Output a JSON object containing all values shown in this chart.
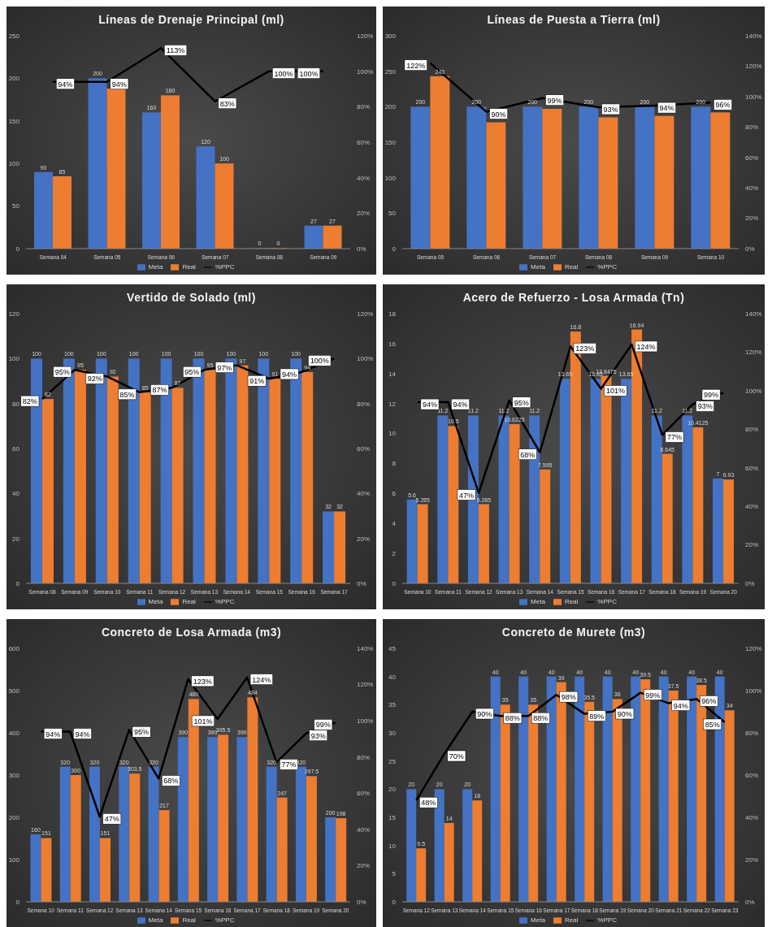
{
  "chart_data": [
    {
      "type": "bar",
      "title": "Líneas de Drenaje Principal (ml)",
      "categories": [
        "Semana 04",
        "Semana 05",
        "Semana 06",
        "Semana 07",
        "Semana 08",
        "Semana 09"
      ],
      "legend": "bottom",
      "grid": false,
      "ylim": [
        0,
        250
      ],
      "yticks": [
        0,
        50,
        100,
        150,
        200,
        250
      ],
      "y2lim": [
        0,
        120
      ],
      "y2ticks": [
        {
          "value": 0,
          "label": "0%"
        },
        {
          "value": 20,
          "label": "20%"
        },
        {
          "value": 40,
          "label": "40%"
        },
        {
          "value": 60,
          "label": "60%"
        },
        {
          "value": 80,
          "label": "80%"
        },
        {
          "value": 100,
          "label": "100%"
        },
        {
          "value": 120,
          "label": "120%"
        }
      ],
      "series": [
        {
          "name": "Meta",
          "color": "#4472c4",
          "values": [
            90,
            200,
            160,
            120,
            0,
            27
          ],
          "value_labels": [
            "90",
            "200",
            "160",
            "120",
            "0",
            "27"
          ]
        },
        {
          "name": "Real",
          "color": "#ed7d31",
          "values": [
            85,
            188,
            180,
            100,
            0,
            27
          ],
          "value_labels": [
            "85",
            null,
            "180",
            "100",
            "0",
            "27"
          ]
        },
        {
          "name": "%PPC",
          "type": "line",
          "axis": "y2",
          "color": "#000000",
          "values": [
            94,
            94,
            113,
            83,
            100,
            100
          ],
          "value_labels": [
            "94%",
            "94%",
            "113%",
            "83%",
            "100%",
            "100%"
          ]
        }
      ]
    },
    {
      "type": "bar",
      "title": "Líneas de Puesta a Tierra (ml)",
      "categories": [
        "Semana 05",
        "Semana 06",
        "Semana 07",
        "Semana 08",
        "Semana 09",
        "Semana 10"
      ],
      "legend": "bottom",
      "grid": false,
      "ylim": [
        0,
        300
      ],
      "yticks": [
        0,
        50,
        100,
        150,
        200,
        250,
        300
      ],
      "y2lim": [
        0,
        140
      ],
      "y2ticks": [
        {
          "value": 0,
          "label": "0%"
        },
        {
          "value": 20,
          "label": "20%"
        },
        {
          "value": 40,
          "label": "40%"
        },
        {
          "value": 60,
          "label": "60%"
        },
        {
          "value": 80,
          "label": "80%"
        },
        {
          "value": 100,
          "label": "100%"
        },
        {
          "value": 120,
          "label": "120%"
        },
        {
          "value": 140,
          "label": "140%"
        }
      ],
      "series": [
        {
          "name": "Meta",
          "color": "#4472c4",
          "values": [
            200,
            200,
            200,
            200,
            200,
            200
          ],
          "value_labels": [
            "200",
            "200",
            "200",
            "200",
            "200",
            "200"
          ]
        },
        {
          "name": "Real",
          "color": "#ed7d31",
          "values": [
            243,
            178,
            197,
            185,
            187,
            192
          ],
          "value_labels": [
            "243",
            null,
            null,
            null,
            null,
            null
          ]
        },
        {
          "name": "%PPC",
          "type": "line",
          "axis": "y2",
          "color": "#000000",
          "values": [
            122,
            90,
            99,
            93,
            94,
            96
          ],
          "value_labels": [
            "122%",
            "90%",
            "99%",
            "93%",
            "94%",
            "96%"
          ]
        }
      ]
    },
    {
      "type": "bar",
      "title": "Vertido de Solado (ml)",
      "categories": [
        "Semana 08",
        "Semana 09",
        "Semana 10",
        "Semana 11",
        "Semana 12",
        "Semana 13",
        "Semana 14",
        "Semana 15",
        "Semana 16",
        "Semana 17"
      ],
      "legend": "bottom",
      "grid": false,
      "ylim": [
        0,
        120
      ],
      "yticks": [
        0,
        20,
        40,
        60,
        80,
        100,
        120
      ],
      "y2lim": [
        0,
        120
      ],
      "y2ticks": [
        {
          "value": 0,
          "label": "0%"
        },
        {
          "value": 20,
          "label": "20%"
        },
        {
          "value": 40,
          "label": "40%"
        },
        {
          "value": 60,
          "label": "60%"
        },
        {
          "value": 80,
          "label": "80%"
        },
        {
          "value": 100,
          "label": "100%"
        },
        {
          "value": 120,
          "label": "120%"
        }
      ],
      "series": [
        {
          "name": "Meta",
          "color": "#4472c4",
          "values": [
            100,
            100,
            100,
            100,
            100,
            100,
            100,
            100,
            100,
            32
          ],
          "value_labels": [
            "100",
            "100",
            "100",
            "100",
            "100",
            "100",
            "100",
            "100",
            "100",
            "32"
          ]
        },
        {
          "name": "Real",
          "color": "#ed7d31",
          "values": [
            82,
            95,
            92,
            85,
            87,
            95,
            97,
            91,
            94,
            32
          ],
          "value_labels": [
            "82",
            "95",
            "92",
            "85",
            "87",
            "95",
            "97",
            "91",
            "94",
            "32"
          ]
        },
        {
          "name": "%PPC",
          "type": "line",
          "axis": "y2",
          "color": "#000000",
          "values": [
            82,
            95,
            92,
            85,
            87,
            95,
            97,
            91,
            94,
            100
          ],
          "value_labels": [
            "82%",
            "95%",
            "92%",
            "85%",
            "87%",
            "95%",
            "97%",
            "91%",
            "94%",
            "100%"
          ]
        }
      ]
    },
    {
      "type": "bar",
      "title": "Acero de Refuerzo - Losa Armada (Tn)",
      "categories": [
        "Semana 10",
        "Semana 11",
        "Semana 12",
        "Semana 13",
        "Semana 14",
        "Semana 15",
        "Semana 16",
        "Semana 17",
        "Semana 18",
        "Semana 19",
        "Semana 20"
      ],
      "legend": "bottom",
      "grid": false,
      "ylim": [
        0,
        18
      ],
      "yticks": [
        0,
        2,
        4,
        6,
        8,
        10,
        12,
        14,
        16,
        18
      ],
      "y2lim": [
        0,
        140
      ],
      "y2ticks": [
        {
          "value": 0,
          "label": "0%"
        },
        {
          "value": 20,
          "label": "20%"
        },
        {
          "value": 40,
          "label": "40%"
        },
        {
          "value": 60,
          "label": "60%"
        },
        {
          "value": 80,
          "label": "80%"
        },
        {
          "value": 100,
          "label": "100%"
        },
        {
          "value": 120,
          "label": "120%"
        },
        {
          "value": 140,
          "label": "140%"
        }
      ],
      "series": [
        {
          "name": "Meta",
          "color": "#4472c4",
          "values": [
            5.6,
            11.2,
            11.2,
            11.2,
            11.2,
            13.65,
            13.65,
            13.65,
            11.2,
            11.2,
            7
          ],
          "value_labels": [
            "5.6",
            "11.2",
            "11.2",
            "11.2",
            "11.2",
            "13.65",
            "13.65",
            "13.65",
            "11.2",
            "11.2",
            "7"
          ]
        },
        {
          "name": "Real",
          "color": "#ed7d31",
          "values": [
            5.285,
            10.5,
            5.285,
            10.6225,
            7.595,
            16.8,
            13.8475,
            16.94,
            8.645,
            10.4125,
            6.93
          ],
          "value_labels": [
            "5.285",
            "10.5",
            "5.285",
            "10.6225",
            "7.595",
            "16.8",
            "13.8475",
            "16.94",
            "8.645",
            "10.4125",
            "6.93"
          ]
        },
        {
          "name": "%PPC",
          "type": "line",
          "axis": "y2",
          "color": "#000000",
          "values": [
            94,
            94,
            47,
            95,
            68,
            123,
            101,
            124,
            77,
            93,
            99
          ],
          "value_labels": [
            "94%",
            "94%",
            "47%",
            "95%",
            "68%",
            "123%",
            "101%",
            "124%",
            "77%",
            "93%",
            "99%"
          ]
        }
      ]
    },
    {
      "type": "bar",
      "title": "Concreto de Losa Armada (m3)",
      "categories": [
        "Semana 10",
        "Semana 11",
        "Semana 12",
        "Semana 13",
        "Semana 14",
        "Semana 15",
        "Semana 16",
        "Semana 17",
        "Semana 18",
        "Semana 19",
        "Semana 20"
      ],
      "legend": "bottom",
      "grid": false,
      "ylim": [
        0,
        600
      ],
      "yticks": [
        0,
        100,
        200,
        300,
        400,
        500,
        600
      ],
      "y2lim": [
        0,
        140
      ],
      "y2ticks": [
        {
          "value": 0,
          "label": "0%"
        },
        {
          "value": 20,
          "label": "20%"
        },
        {
          "value": 40,
          "label": "40%"
        },
        {
          "value": 60,
          "label": "60%"
        },
        {
          "value": 80,
          "label": "80%"
        },
        {
          "value": 100,
          "label": "100%"
        },
        {
          "value": 120,
          "label": "120%"
        },
        {
          "value": 140,
          "label": "140%"
        }
      ],
      "series": [
        {
          "name": "Meta",
          "color": "#4472c4",
          "values": [
            160,
            320,
            320,
            320,
            320,
            390,
            390,
            390,
            320,
            320,
            200
          ],
          "value_labels": [
            "160",
            "320",
            "320",
            "320",
            "320",
            "390",
            "390",
            "390",
            "320",
            "320",
            "200"
          ]
        },
        {
          "name": "Real",
          "color": "#ed7d31",
          "values": [
            151,
            300,
            151,
            303.5,
            217,
            480,
            395.5,
            484,
            247,
            297.5,
            198
          ],
          "value_labels": [
            "151",
            "300",
            "151",
            "303.5",
            "217",
            "480",
            "395.5",
            "484",
            "247",
            "297.5",
            "198"
          ]
        },
        {
          "name": "%PPC",
          "type": "line",
          "axis": "y2",
          "color": "#000000",
          "values": [
            94,
            94,
            47,
            95,
            68,
            123,
            101,
            124,
            77,
            93,
            99
          ],
          "value_labels": [
            "94%",
            "94%",
            "47%",
            "95%",
            "68%",
            "123%",
            "101%",
            "124%",
            "77%",
            "93%",
            "99%"
          ]
        }
      ]
    },
    {
      "type": "bar",
      "title": "Concreto de Murete (m3)",
      "categories": [
        "Semana 12",
        "Semana 13",
        "Semana 14",
        "Semana 15",
        "Semana 16",
        "Semana 17",
        "Semana 18",
        "Semana 19",
        "Semana 20",
        "Semana 21",
        "Semana 22",
        "Semana 23"
      ],
      "legend": "bottom",
      "grid": false,
      "ylim": [
        0,
        45
      ],
      "yticks": [
        0,
        5,
        10,
        15,
        20,
        25,
        30,
        35,
        40,
        45
      ],
      "y2lim": [
        0,
        120
      ],
      "y2ticks": [
        {
          "value": 0,
          "label": "0%"
        },
        {
          "value": 20,
          "label": "20%"
        },
        {
          "value": 40,
          "label": "40%"
        },
        {
          "value": 60,
          "label": "60%"
        },
        {
          "value": 80,
          "label": "80%"
        },
        {
          "value": 100,
          "label": "100%"
        },
        {
          "value": 120,
          "label": "120%"
        }
      ],
      "series": [
        {
          "name": "Meta",
          "color": "#4472c4",
          "values": [
            20,
            20,
            20,
            40,
            40,
            40,
            40,
            40,
            40,
            40,
            40,
            40
          ],
          "value_labels": [
            "20",
            "20",
            "20",
            "40",
            "40",
            "40",
            "40",
            "40",
            "40",
            "40",
            "40",
            "40"
          ]
        },
        {
          "name": "Real",
          "color": "#ed7d31",
          "values": [
            9.5,
            14,
            18,
            35,
            35,
            39,
            35.5,
            36,
            39.5,
            37.5,
            38.5,
            34
          ],
          "value_labels": [
            "9.5",
            "14",
            "18",
            "35",
            "35",
            "39",
            "35.5",
            "36",
            "39.5",
            "37.5",
            "38.5",
            "34"
          ]
        },
        {
          "name": "%PPC",
          "type": "line",
          "axis": "y2",
          "color": "#000000",
          "values": [
            48,
            70,
            90,
            88,
            88,
            98,
            89,
            90,
            99,
            94,
            96,
            85
          ],
          "value_labels": [
            "48%",
            "70%",
            "90%",
            "88%",
            "88%",
            "98%",
            "89%",
            "90%",
            "99%",
            "94%",
            "96%",
            "85%"
          ]
        }
      ]
    }
  ]
}
